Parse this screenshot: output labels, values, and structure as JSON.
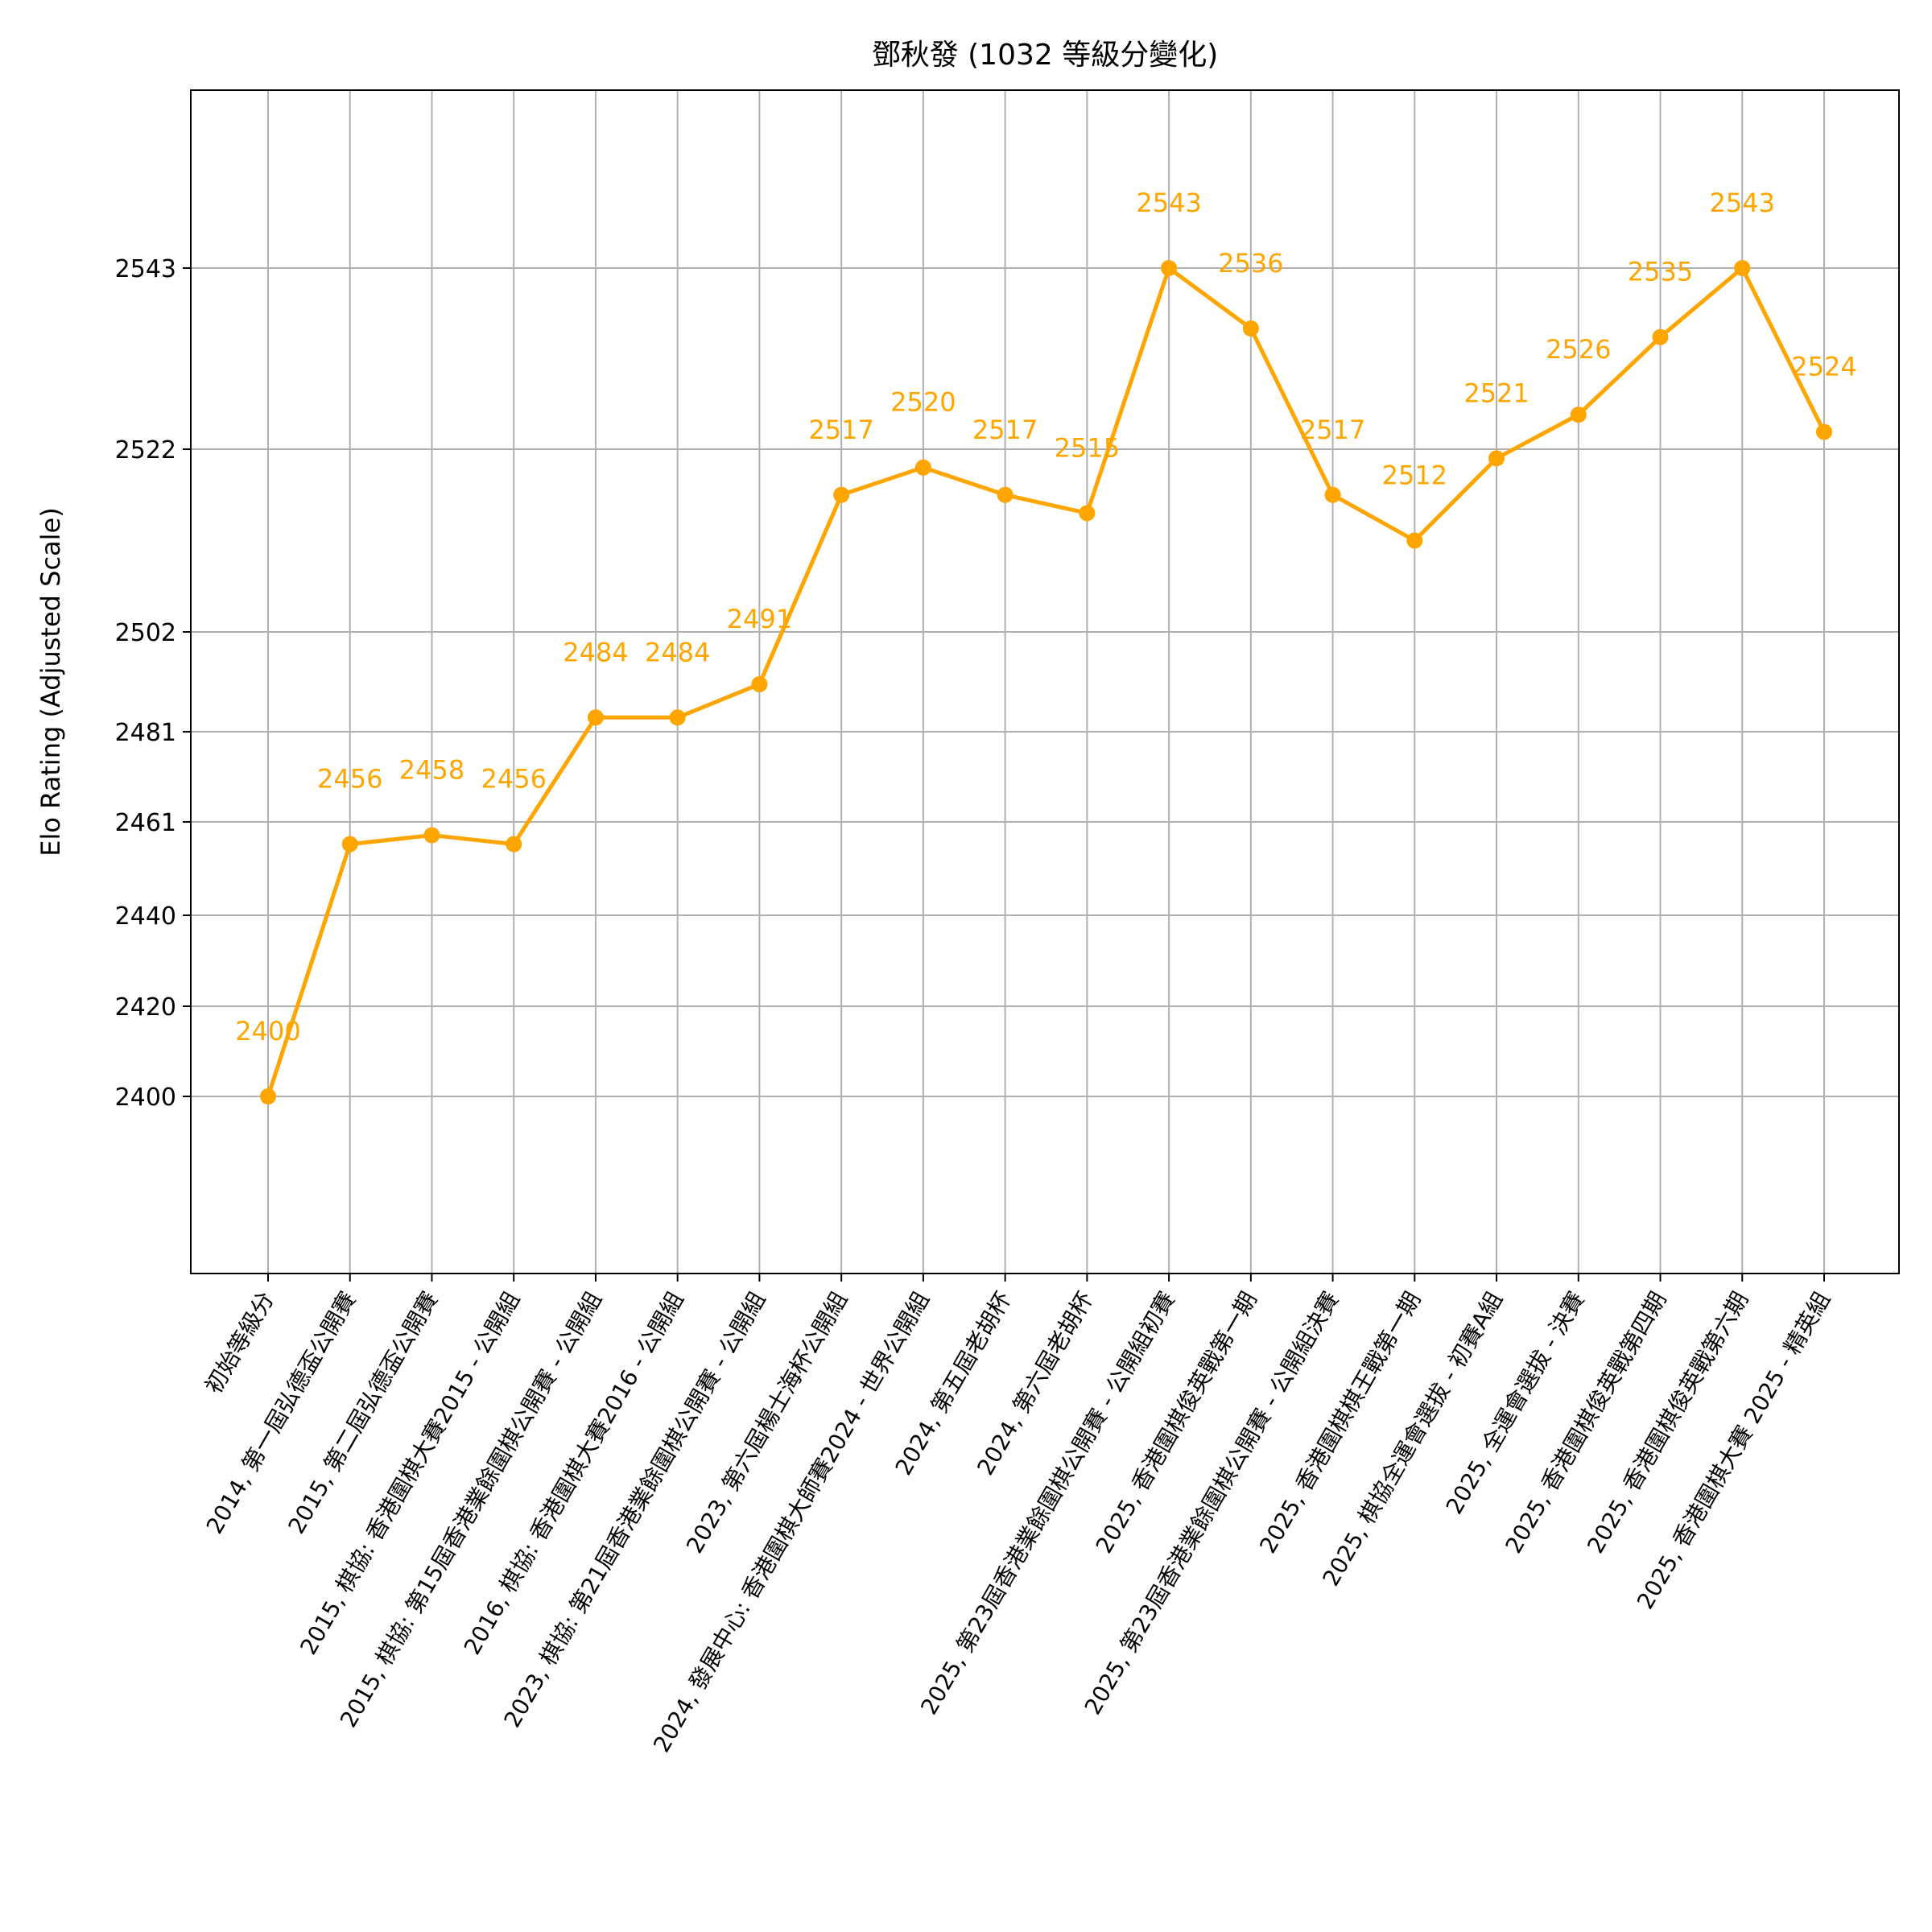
{
  "chart_data": {
    "type": "line",
    "title": "鄧秋發 (1032 等級分變化)",
    "xlabel": "",
    "ylabel": "Elo Rating (Adjusted Scale)",
    "categories": [
      "初始等級分",
      "2014, 第一屆弘德盃公開賽",
      "2015, 第二屆弘德盃公開賽",
      "2015, 棋協: 香港圍棋大賽2015 - 公開組",
      "2015, 棋協: 第15屆香港業餘圍棋公開賽 - 公開組",
      "2016, 棋協: 香港圍棋大賽2016 - 公開組",
      "2023, 棋協: 第21屆香港業餘圍棋公開賽 - 公開組",
      "2023, 第六屆楊士海杯公開組",
      "2024, 發展中心: 香港圍棋大師賽2024 - 世界公開組",
      "2024, 第五屆老胡杯",
      "2024, 第六屆老胡杯",
      "2025, 第23屆香港業餘圍棋公開賽 - 公開組初賽",
      "2025, 香港圍棋俊英戰第一期",
      "2025, 第23屆香港業餘圍棋公開賽 - 公開組決賽",
      "2025, 香港圍棋棋王戰第一期",
      "2025, 棋協全運會選拔 - 初賽A組",
      "2025, 全運會選拔 - 決賽",
      "2025, 香港圍棋俊英戰第四期",
      "2025, 香港圍棋俊英戰第六期",
      "2025, 香港圍棋大賽 2025 - 精英組"
    ],
    "series": [
      {
        "values": [
          2400,
          2456,
          2458,
          2456,
          2484,
          2484,
          2491,
          2517,
          2520,
          2517,
          2515,
          2543,
          2536,
          2517,
          2512,
          2521,
          2526,
          2535,
          2543,
          2524
        ],
        "labels": [
          "2400",
          "2456",
          "2458",
          "2456",
          "2484",
          "2484",
          "2491",
          "2517",
          "2520",
          "2517",
          "2515",
          "2543",
          "2536",
          "2517",
          "2512",
          "2521",
          "2526",
          "2535",
          "2543",
          "2524"
        ],
        "color": "#FFA500",
        "marker": "circle"
      }
    ],
    "yticks": [
      2400,
      2420,
      2440,
      2461,
      2481,
      2502,
      2522,
      2543
    ],
    "ytick_labels": [
      "2400",
      "2420",
      "2440",
      "2461",
      "2481",
      "2502",
      "2522",
      "2543"
    ],
    "grid": true,
    "legend": "none"
  }
}
